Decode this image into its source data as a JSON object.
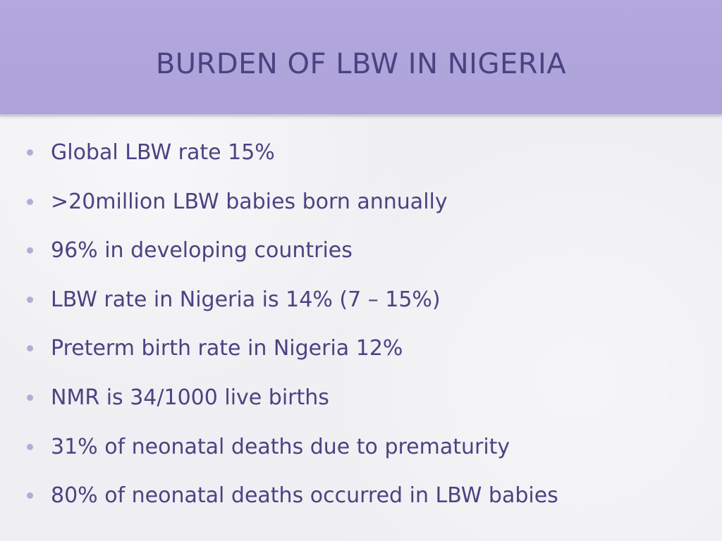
{
  "slide": {
    "title": "BURDEN OF LBW IN NIGERIA",
    "bullets": [
      "Global LBW rate 15%",
      ">20million LBW babies born annually",
      "96% in developing countries",
      "LBW rate in Nigeria is 14% (7 – 15%)",
      "Preterm birth rate in Nigeria 12%",
      "NMR is 34/1000 live births",
      "31% of neonatal deaths due to prematurity",
      "80% of neonatal deaths occurred in LBW babies"
    ]
  },
  "colors": {
    "title_band": "#b2a8dd",
    "text": "#4a4382",
    "bullet_dot": "#b3acd8",
    "background": "#efeef2"
  }
}
